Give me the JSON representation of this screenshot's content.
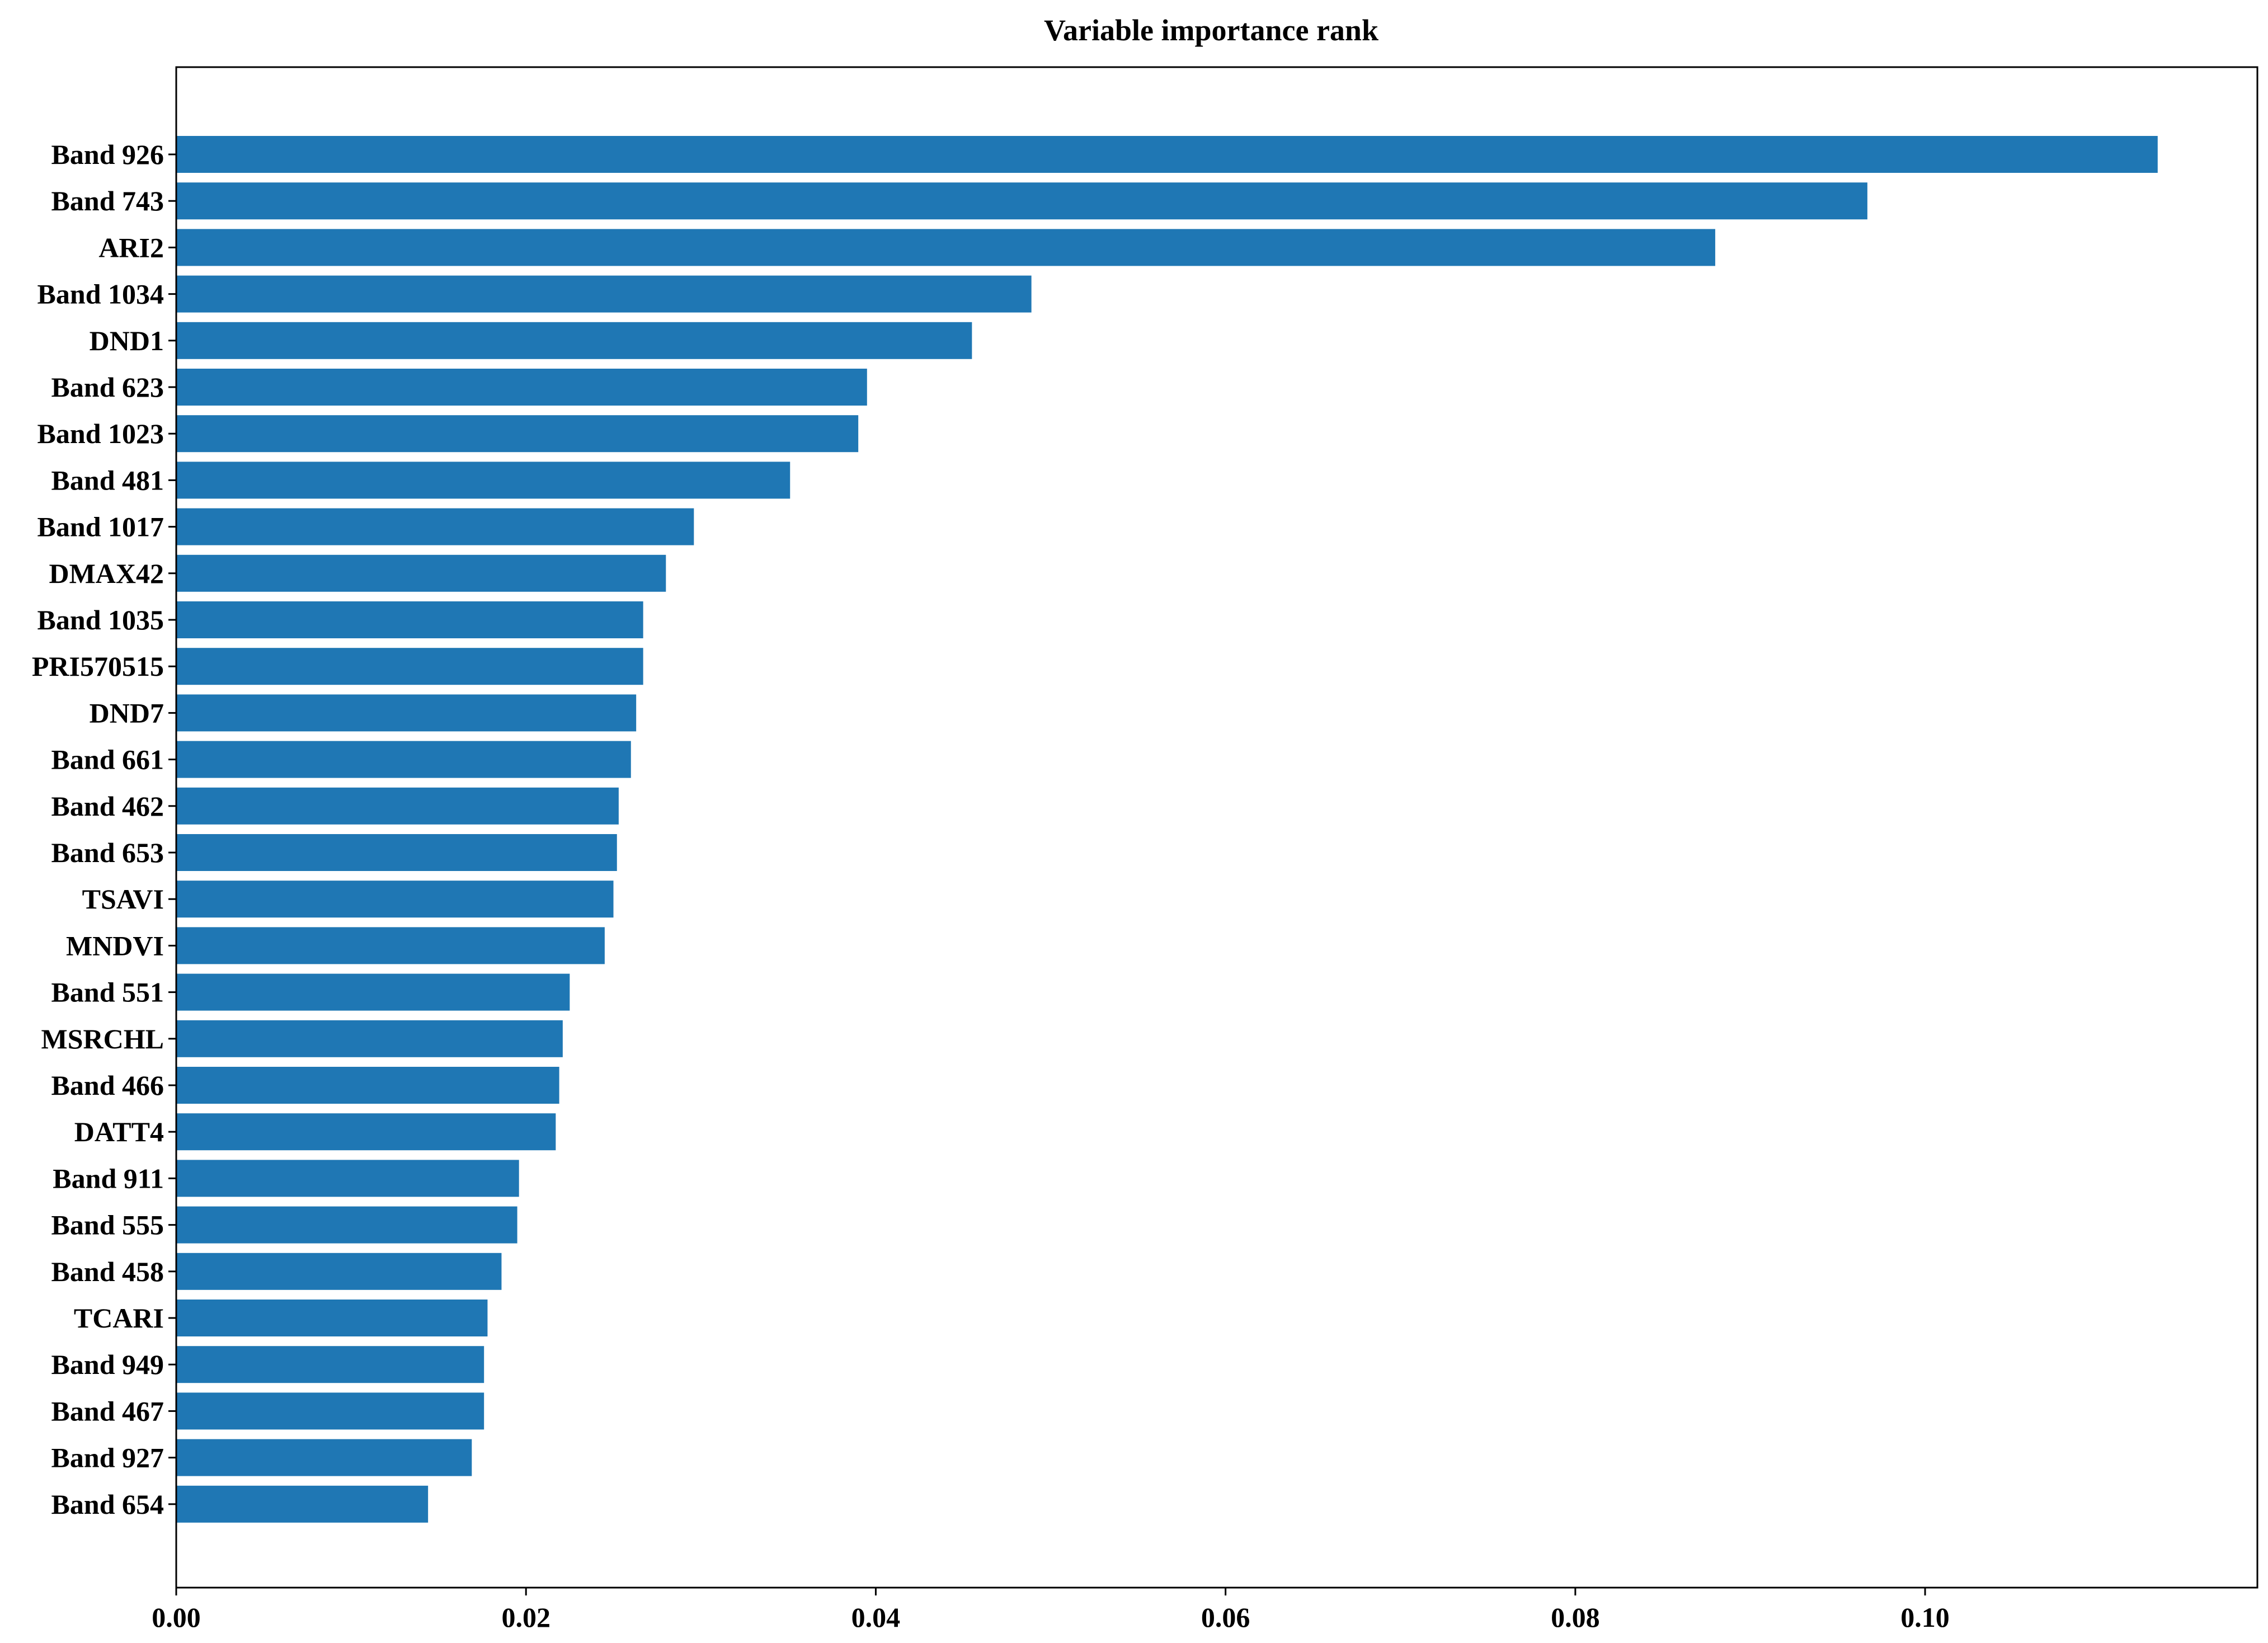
{
  "chart_data": {
    "type": "bar",
    "orientation": "horizontal",
    "title": "Variable importance rank",
    "xlabel": "",
    "ylabel": "",
    "bar_color": "#1f77b4",
    "xlim": [
      0,
      0.119
    ],
    "x_ticks": [
      0.0,
      0.02,
      0.04,
      0.06,
      0.08,
      0.1
    ],
    "x_tick_labels": [
      "0.00",
      "0.02",
      "0.04",
      "0.06",
      "0.08",
      "0.10"
    ],
    "grid": false,
    "legend": "none",
    "categories": [
      "Band 926",
      "Band 743",
      "ARI2",
      "Band 1034",
      "DND1",
      "Band 623",
      "Band 1023",
      "Band 481",
      "Band 1017",
      "DMAX42",
      "Band 1035",
      "PRI570515",
      "DND7",
      "Band 661",
      "Band 462",
      "Band 653",
      "TSAVI",
      "MNDVI",
      "Band 551",
      "MSRCHL",
      "Band 466",
      "DATT4",
      "Band 911",
      "Band 555",
      "Band 458",
      "TCARI",
      "Band 949",
      "Band 467",
      "Band 927",
      "Band 654"
    ],
    "values": [
      0.1133,
      0.0967,
      0.088,
      0.0489,
      0.0455,
      0.0395,
      0.039,
      0.0351,
      0.0296,
      0.028,
      0.0267,
      0.0267,
      0.0263,
      0.026,
      0.0253,
      0.0252,
      0.025,
      0.0245,
      0.0225,
      0.0221,
      0.0219,
      0.0217,
      0.0196,
      0.0195,
      0.0186,
      0.0178,
      0.0176,
      0.0176,
      0.0169,
      0.0144
    ]
  }
}
